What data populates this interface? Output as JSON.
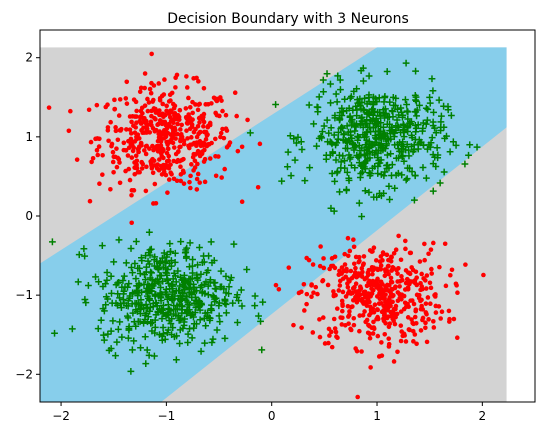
{
  "chart_data": {
    "type": "scatter",
    "title": "Decision Boundary with 3 Neurons",
    "xlabel": "",
    "ylabel": "",
    "xlim": [
      -2.2,
      2.5
    ],
    "ylim": [
      -2.35,
      2.35
    ],
    "xticks": [
      -2,
      -1,
      0,
      1,
      2
    ],
    "xtick_labels": [
      "−2",
      "−1",
      "0",
      "1",
      "2"
    ],
    "yticks": [
      -2,
      -1,
      0,
      1,
      2
    ],
    "ytick_labels": [
      "−2",
      "−1",
      "0",
      "1",
      "2"
    ],
    "grid": false,
    "legend": "none",
    "background_regions": {
      "x_range": [
        -2.2,
        2.23
      ],
      "y_range": [
        -2.35,
        2.13
      ],
      "colors": {
        "outside": "#d3d3d3",
        "band": "#87ceeb"
      },
      "band": {
        "upper_edge": [
          [
            -2.2,
            -0.6
          ],
          [
            1.0,
            2.13
          ]
        ],
        "lower_edge": [
          [
            -1.05,
            -2.35
          ],
          [
            2.23,
            1.12
          ]
        ]
      }
    },
    "series": [
      {
        "marker": "circle",
        "color": "#ff0000",
        "clusters": [
          {
            "center": [
              -1.0,
              1.0
            ],
            "spread": [
              0.32,
              0.32
            ],
            "count": 500
          },
          {
            "center": [
              1.0,
              -1.0
            ],
            "spread": [
              0.32,
              0.32
            ],
            "count": 500
          }
        ]
      },
      {
        "marker": "plus",
        "color": "#008000",
        "clusters": [
          {
            "center": [
              1.0,
              1.0
            ],
            "spread": [
              0.32,
              0.32
            ],
            "count": 500
          },
          {
            "center": [
              -1.0,
              -1.0
            ],
            "spread": [
              0.32,
              0.32
            ],
            "count": 500
          }
        ]
      }
    ]
  }
}
